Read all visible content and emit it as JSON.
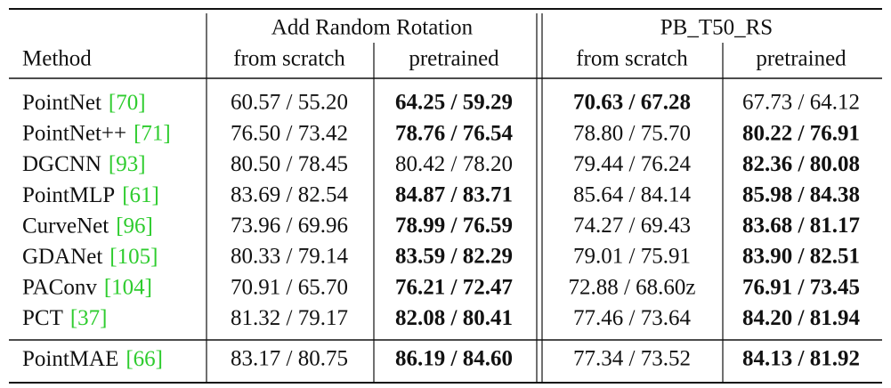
{
  "table": {
    "header": {
      "method_label": "Method",
      "groups": [
        "Add Random Rotation",
        "PB_T50_RS"
      ],
      "subcolumns": [
        "from scratch",
        "pretrained",
        "from scratch",
        "pretrained"
      ]
    },
    "sections": [
      {
        "rows": [
          {
            "method": "PointNet",
            "ref": "[70]",
            "cells": [
              {
                "text": "60.57 / 55.20",
                "bold": false
              },
              {
                "text": "64.25 / 59.29",
                "bold": true
              },
              {
                "text": "70.63 / 67.28",
                "bold": true
              },
              {
                "text": "67.73 / 64.12",
                "bold": false
              }
            ]
          },
          {
            "method": "PointNet++",
            "ref": "[71]",
            "cells": [
              {
                "text": "76.50 / 73.42",
                "bold": false
              },
              {
                "text": "78.76 / 76.54",
                "bold": true
              },
              {
                "text": "78.80 / 75.70",
                "bold": false
              },
              {
                "text": "80.22 / 76.91",
                "bold": true
              }
            ]
          },
          {
            "method": "DGCNN",
            "ref": "[93]",
            "cells": [
              {
                "text": "80.50 / 78.45",
                "bold": false
              },
              {
                "text": "80.42 / 78.20",
                "bold": false
              },
              {
                "text": "79.44 / 76.24",
                "bold": false
              },
              {
                "text": "82.36 / 80.08",
                "bold": true
              }
            ]
          },
          {
            "method": "PointMLP",
            "ref": "[61]",
            "cells": [
              {
                "text": "83.69 / 82.54",
                "bold": false
              },
              {
                "text": "84.87 / 83.71",
                "bold": true
              },
              {
                "text": "85.64 / 84.14",
                "bold": false
              },
              {
                "text": "85.98 / 84.38",
                "bold": true
              }
            ]
          },
          {
            "method": "CurveNet",
            "ref": "[96]",
            "cells": [
              {
                "text": "73.96 / 69.96",
                "bold": false
              },
              {
                "text": "78.99 / 76.59",
                "bold": true
              },
              {
                "text": "74.27 / 69.43",
                "bold": false
              },
              {
                "text": "83.68 / 81.17",
                "bold": true
              }
            ]
          },
          {
            "method": "GDANet",
            "ref": "[105]",
            "cells": [
              {
                "text": "80.33 / 79.14",
                "bold": false
              },
              {
                "text": "83.59 / 82.29",
                "bold": true
              },
              {
                "text": "79.01 / 75.91",
                "bold": false
              },
              {
                "text": "83.90 / 82.51",
                "bold": true
              }
            ]
          },
          {
            "method": "PAConv",
            "ref": "[104]",
            "cells": [
              {
                "text": "70.91 / 65.70",
                "bold": false
              },
              {
                "text": "76.21 / 72.47",
                "bold": true
              },
              {
                "text": "72.88 / 68.60z",
                "bold": false
              },
              {
                "text": "76.91 / 73.45",
                "bold": true
              }
            ]
          },
          {
            "method": "PCT",
            "ref": "[37]",
            "cells": [
              {
                "text": "81.32 / 79.17",
                "bold": false
              },
              {
                "text": "82.08 / 80.41",
                "bold": true
              },
              {
                "text": "77.46 / 73.64",
                "bold": false
              },
              {
                "text": "84.20 / 81.94",
                "bold": true
              }
            ]
          }
        ]
      },
      {
        "rows": [
          {
            "method": "PointMAE",
            "ref": "[66]",
            "cells": [
              {
                "text": "83.17 / 80.75",
                "bold": false
              },
              {
                "text": "86.19 / 84.60",
                "bold": true
              },
              {
                "text": "77.34 / 73.52",
                "bold": false
              },
              {
                "text": "84.13 / 81.92",
                "bold": true
              }
            ]
          }
        ]
      }
    ]
  }
}
